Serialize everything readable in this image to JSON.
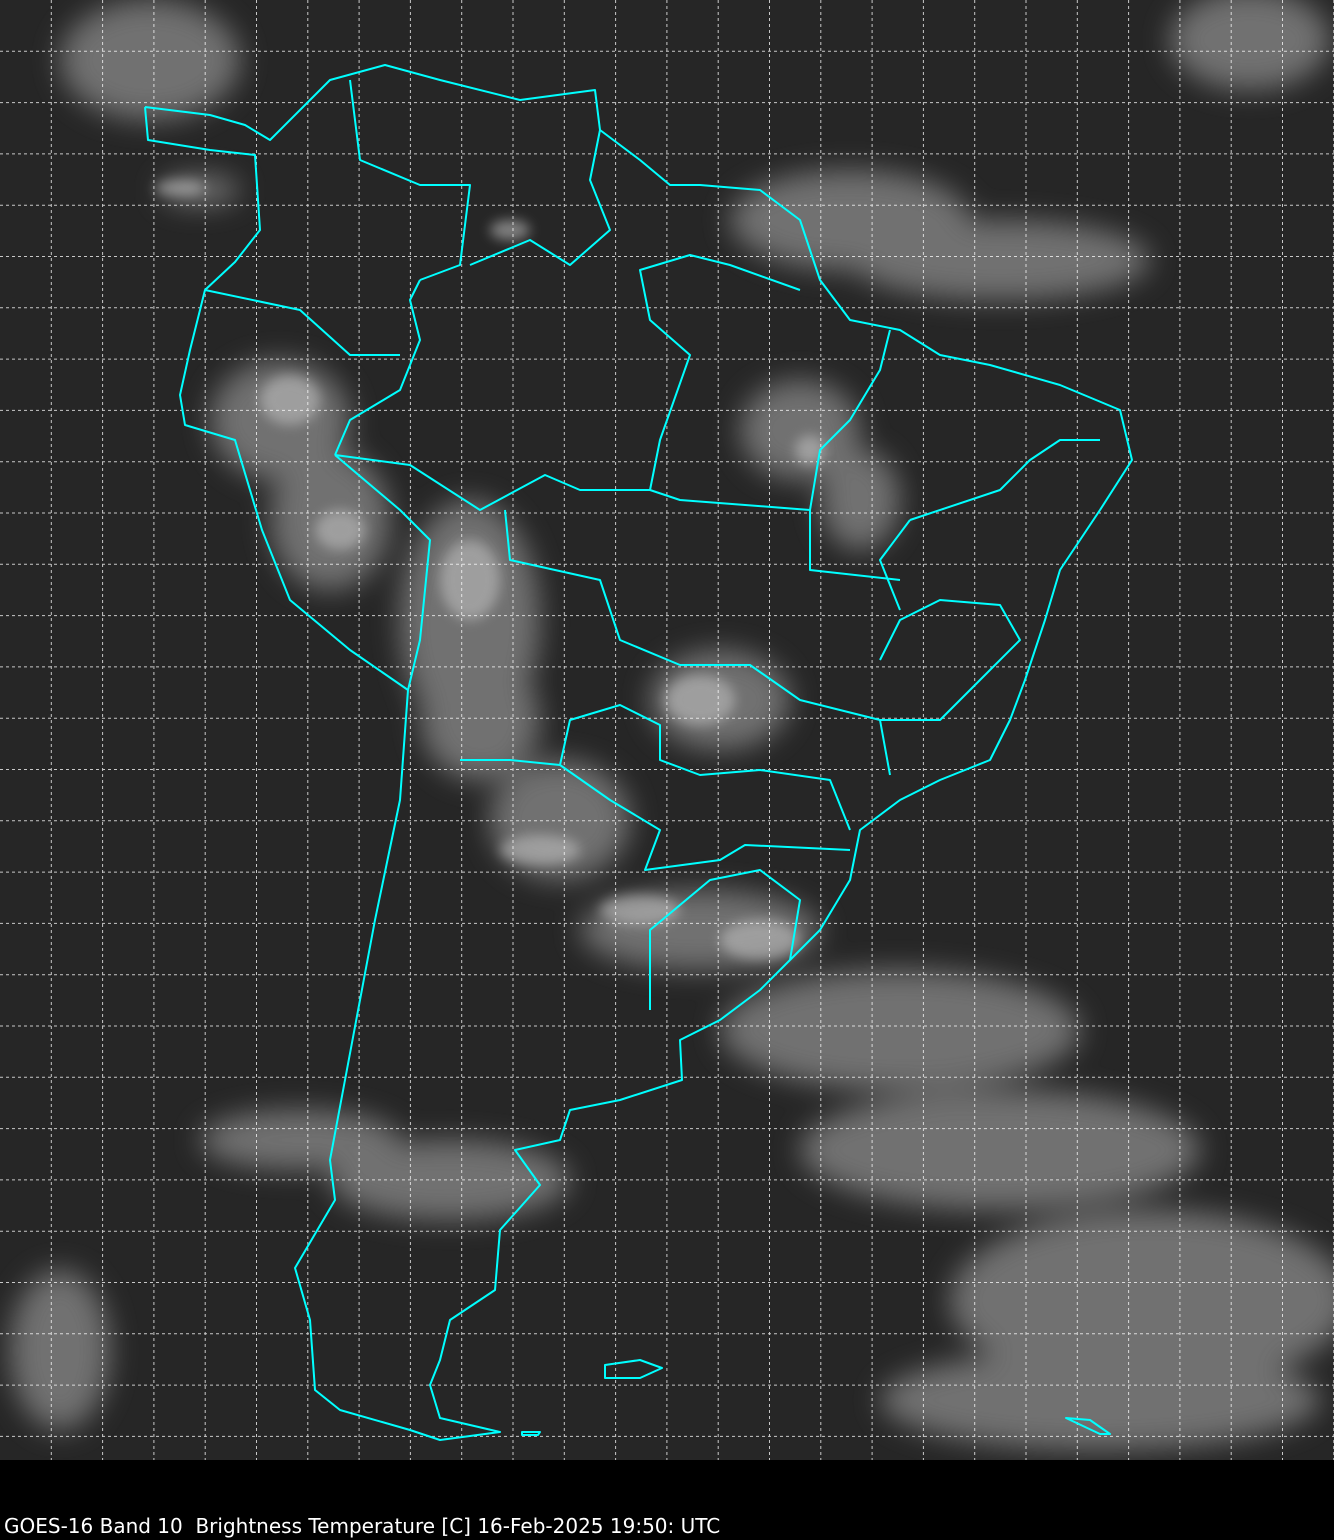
{
  "caption": "GOES-16 Band 10  Brightness Temperature [C] 16-Feb-2025 19:50: UTC",
  "colors": {
    "background": "#262626",
    "clouds": "#9a9a9a",
    "borders": "#00ffff",
    "grid": "#ffffff",
    "caption_bar": "#000000"
  },
  "map": {
    "type": "satellite infrared brightness temperature",
    "region": "South America",
    "overlays": [
      "coastlines",
      "country borders",
      "state borders",
      "lat-lon grid (dashed)"
    ]
  }
}
